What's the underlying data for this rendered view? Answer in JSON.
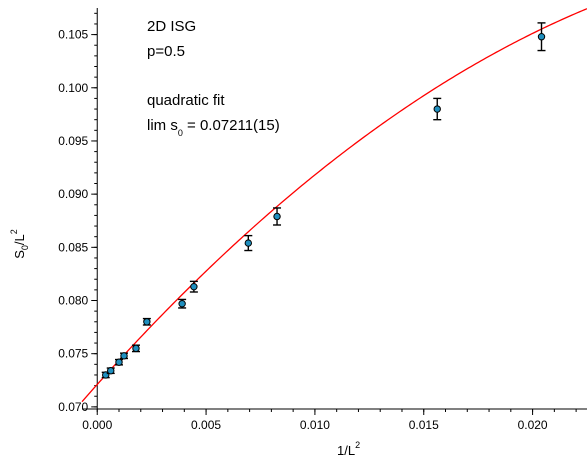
{
  "chart_data": {
    "type": "scatter",
    "annotations": {
      "line1": "2D ISG",
      "line2": "p=0.5",
      "line3": "quadratic fit",
      "line4_prefix": "lim s",
      "line4_sub": "0",
      "line4_suffix": " = 0.07211(15)"
    },
    "xlabel": {
      "main": "1/L",
      "sup": "2"
    },
    "ylabel": {
      "main": "S",
      "sub": "0",
      "mid": "/L",
      "sup": "2"
    },
    "xlim": [
      -0.0007,
      0.0225
    ],
    "ylim": [
      0.0698,
      0.1075
    ],
    "xticks": [
      0.0,
      0.005,
      0.01,
      0.015,
      0.02
    ],
    "xtick_labels": [
      "0.000",
      "0.005",
      "0.010",
      "0.015",
      "0.020"
    ],
    "yticks": [
      0.07,
      0.075,
      0.08,
      0.085,
      0.09,
      0.095,
      0.1,
      0.105
    ],
    "ytick_labels": [
      "0.070",
      "0.075",
      "0.080",
      "0.085",
      "0.090",
      "0.095",
      "0.100",
      "0.105"
    ],
    "x_minor_step": 0.001,
    "y_minor_step": 0.001,
    "points": [
      {
        "x": 0.00039,
        "y": 0.073,
        "err": 0.00025
      },
      {
        "x": 0.00062,
        "y": 0.0734,
        "err": 0.00025
      },
      {
        "x": 0.001,
        "y": 0.0742,
        "err": 0.00025
      },
      {
        "x": 0.00123,
        "y": 0.0748,
        "err": 0.00025
      },
      {
        "x": 0.00178,
        "y": 0.0755,
        "err": 0.0003
      },
      {
        "x": 0.00228,
        "y": 0.078,
        "err": 0.0003
      },
      {
        "x": 0.0039,
        "y": 0.0797,
        "err": 0.0004
      },
      {
        "x": 0.00444,
        "y": 0.0813,
        "err": 0.0005
      },
      {
        "x": 0.00694,
        "y": 0.0854,
        "err": 0.0007
      },
      {
        "x": 0.00826,
        "y": 0.0879,
        "err": 0.0008
      },
      {
        "x": 0.01562,
        "y": 0.098,
        "err": 0.001
      },
      {
        "x": 0.02041,
        "y": 0.1048,
        "err": 0.0013
      }
    ],
    "fit": {
      "type": "quadratic",
      "a": 0.07211,
      "b": 2.29,
      "c": -32.0
    },
    "colors": {
      "marker": "#1f8fbf",
      "fit": "#ff0000",
      "errorbar": "#000000",
      "axis": "#000000"
    }
  }
}
